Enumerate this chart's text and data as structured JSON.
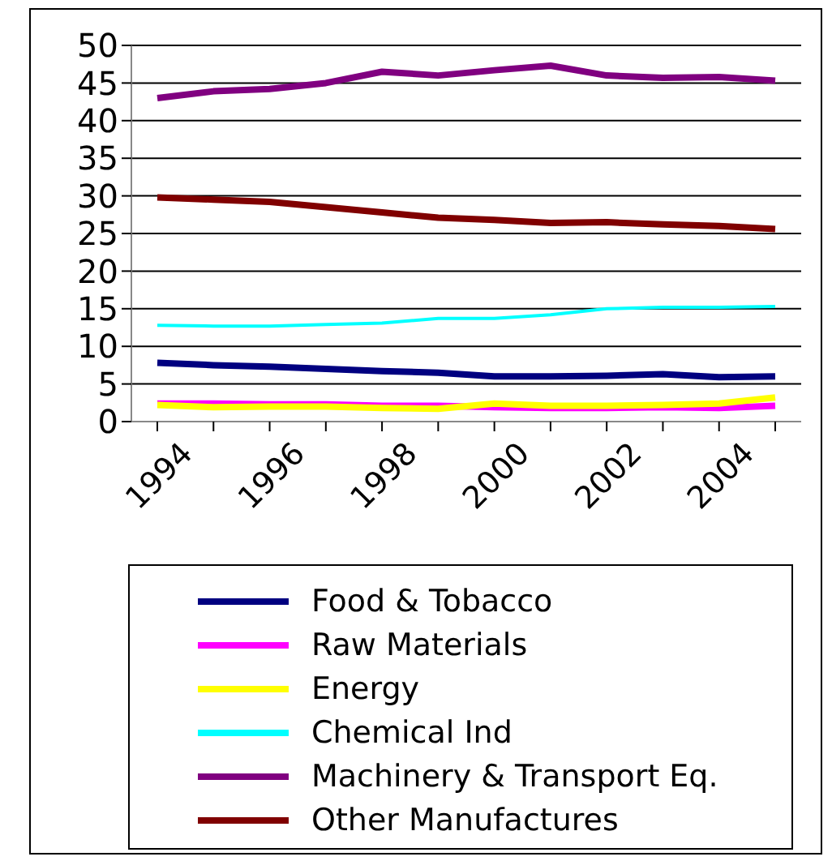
{
  "chart_data": {
    "type": "line",
    "categories": [
      "1994",
      null,
      "1996",
      null,
      "1998",
      null,
      "2000",
      null,
      "2002",
      null,
      "2004",
      null
    ],
    "series": [
      {
        "name": "Food & Tobacco",
        "color": "#000080",
        "values": [
          7.8,
          7.5,
          7.3,
          7.0,
          6.7,
          6.5,
          6.0,
          6.0,
          6.1,
          6.3,
          5.9,
          6.0
        ]
      },
      {
        "name": "Raw Materials",
        "color": "#ff00ff",
        "values": [
          2.4,
          2.4,
          2.3,
          2.3,
          2.1,
          2.1,
          1.9,
          1.8,
          1.8,
          1.9,
          1.8,
          2.1
        ]
      },
      {
        "name": "Energy",
        "color": "#ffff00",
        "values": [
          2.2,
          1.9,
          2.0,
          2.0,
          1.8,
          1.7,
          2.4,
          2.1,
          2.1,
          2.2,
          2.4,
          3.2
        ]
      },
      {
        "name": "Chemical Ind",
        "color": "#00ffff",
        "values": [
          12.8,
          12.7,
          12.7,
          12.9,
          13.1,
          13.7,
          13.7,
          14.2,
          15.0,
          15.2,
          15.2,
          15.3
        ]
      },
      {
        "name": "Machinery & Transport Eq.",
        "color": "#800080",
        "values": [
          43.0,
          43.9,
          44.2,
          45.0,
          46.5,
          46.0,
          46.7,
          47.3,
          46.0,
          45.7,
          45.8,
          45.3
        ]
      },
      {
        "name": "Other Manufactures",
        "color": "#800000",
        "values": [
          29.8,
          29.5,
          29.2,
          28.5,
          27.8,
          27.1,
          26.8,
          26.4,
          26.5,
          26.2,
          26.0,
          25.6
        ]
      }
    ],
    "ylim": [
      0,
      50
    ],
    "yticks": [
      0,
      5,
      10,
      15,
      20,
      25,
      30,
      35,
      40,
      45,
      50
    ],
    "grid": "y",
    "legend": "bottom",
    "marker": "none",
    "line_style": "solid"
  }
}
